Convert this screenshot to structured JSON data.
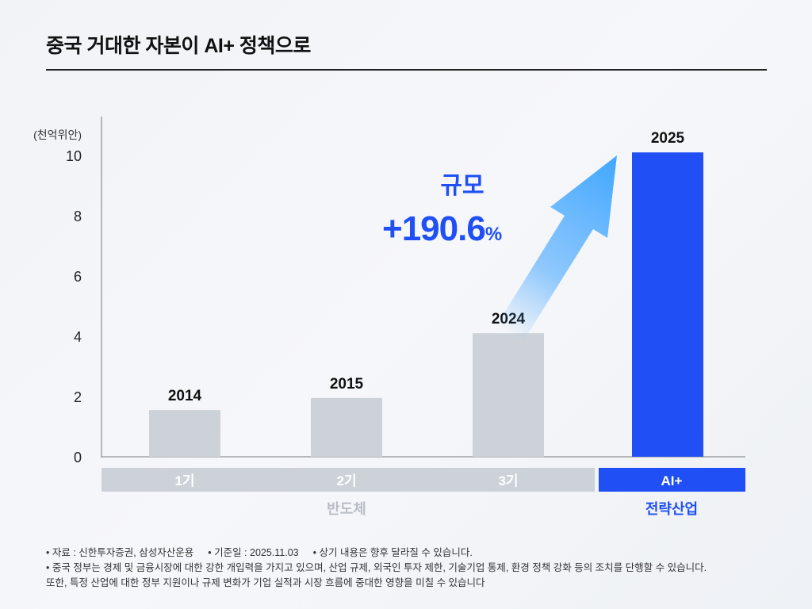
{
  "header": {
    "title": "중국 거대한 자본이 AI+ 정책으로"
  },
  "chart_data": {
    "type": "bar",
    "ylabel": "(천억위안)",
    "ylim": [
      0,
      10
    ],
    "yticks": [
      "0",
      "2",
      "4",
      "6",
      "8",
      "10"
    ],
    "grid": false,
    "categories": [
      "2014",
      "2015",
      "2024",
      "2025"
    ],
    "values": [
      1.55,
      1.95,
      4.1,
      10.1
    ],
    "bar_colors": [
      "#cdd2d9",
      "#cdd2d9",
      "#cdd2d9",
      "#1f4ff5"
    ],
    "periods": [
      {
        "label": "1기",
        "group": "반도체"
      },
      {
        "label": "2기",
        "group": "반도체"
      },
      {
        "label": "3기",
        "group": "반도체"
      },
      {
        "label": "AI+",
        "group": "전략산업"
      }
    ],
    "groups": [
      "반도체",
      "전략산업"
    ],
    "annotation": {
      "label": "규모",
      "value": "+190.6",
      "unit": "%"
    }
  },
  "colors": {
    "accent": "#1f4ff5",
    "gray_bar": "#cdd2d9",
    "gray_text": "#b9bec6"
  },
  "notes": {
    "line1": [
      "• 자료 : 신한투자증권, 삼성자산운용",
      "• 기준일 : 2025.11.03",
      "• 상기 내용은 향후 달라질 수 있습니다."
    ],
    "line2": "• 중국 정부는 경제 및 금융시장에 대한 강한 개입력을 가지고 있으며, 산업 규제, 외국인 투자 제한, 기술기업 통제, 환경 정책 강화 등의 조치를 단행할 수 있습니다.",
    "line3": "또한, 특정 산업에 대한 정부 지원이나 규제 변화가 기업 실적과 시장 흐름에 중대한 영향을 미칠 수 있습니다"
  }
}
